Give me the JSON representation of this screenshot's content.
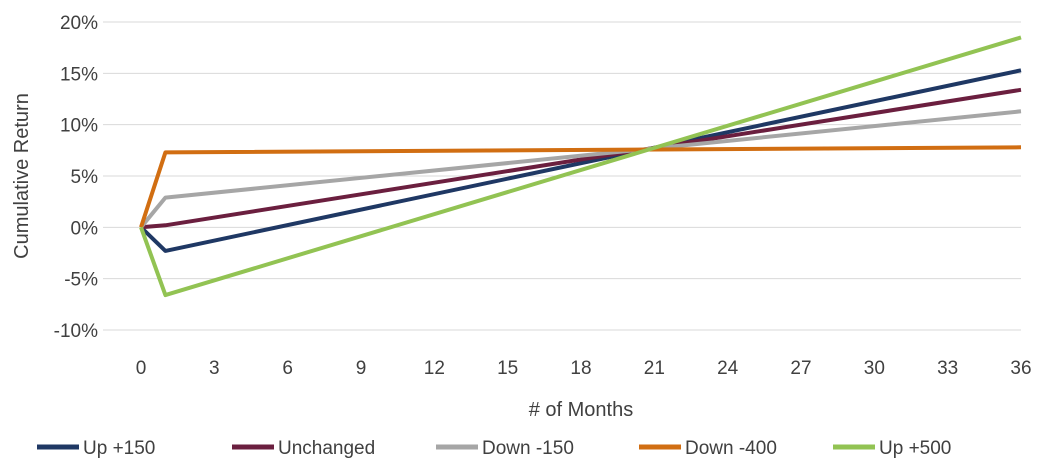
{
  "chart_data": {
    "type": "line",
    "xlabel": "# of Months",
    "ylabel": "Cumulative Return",
    "x_ticks": [
      0,
      3,
      6,
      9,
      12,
      15,
      18,
      21,
      24,
      27,
      30,
      33,
      36
    ],
    "x_range": [
      0,
      36
    ],
    "y_range": [
      -10,
      20
    ],
    "y_ticks": [
      -10,
      -5,
      0,
      5,
      10,
      15,
      20
    ],
    "y_tick_labels": [
      "-10%",
      "-5%",
      "0%",
      "5%",
      "10%",
      "15%",
      "20%"
    ],
    "grid": "horizontal",
    "legend_position": "bottom",
    "series": [
      {
        "name": "Up +150",
        "color": "#1f3864",
        "x": [
          0,
          1,
          36
        ],
        "y": [
          0,
          -2.3,
          15.3
        ]
      },
      {
        "name": "Unchanged",
        "color": "#6b1f3f",
        "x": [
          0,
          1,
          36
        ],
        "y": [
          0,
          0.2,
          13.4
        ]
      },
      {
        "name": "Down -150",
        "color": "#a6a6a6",
        "x": [
          0,
          1,
          36
        ],
        "y": [
          0,
          2.9,
          11.3
        ]
      },
      {
        "name": "Down -400",
        "color": "#d16e12",
        "x": [
          0,
          1,
          36
        ],
        "y": [
          0,
          7.3,
          7.8
        ]
      },
      {
        "name": "Up +500",
        "color": "#92c353",
        "x": [
          0,
          1,
          36
        ],
        "y": [
          0,
          -6.6,
          18.5
        ]
      }
    ]
  }
}
